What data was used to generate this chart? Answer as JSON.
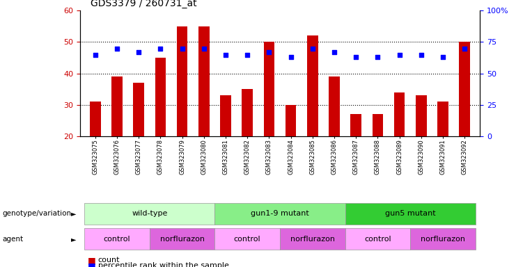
{
  "title": "GDS3379 / 260731_at",
  "samples": [
    "GSM323075",
    "GSM323076",
    "GSM323077",
    "GSM323078",
    "GSM323079",
    "GSM323080",
    "GSM323081",
    "GSM323082",
    "GSM323083",
    "GSM323084",
    "GSM323085",
    "GSM323086",
    "GSM323087",
    "GSM323088",
    "GSM323089",
    "GSM323090",
    "GSM323091",
    "GSM323092"
  ],
  "counts": [
    31,
    39,
    37,
    45,
    55,
    55,
    33,
    35,
    50,
    30,
    52,
    39,
    27,
    27,
    34,
    33,
    31,
    50
  ],
  "percentile_ranks": [
    65,
    70,
    67,
    70,
    70,
    70,
    65,
    65,
    67,
    63,
    70,
    67,
    63,
    63,
    65,
    65,
    63,
    70
  ],
  "ylim_left": [
    20,
    60
  ],
  "ylim_right": [
    0,
    100
  ],
  "yticks_left": [
    20,
    30,
    40,
    50,
    60
  ],
  "yticks_right": [
    0,
    25,
    50,
    75,
    100
  ],
  "bar_color": "#cc0000",
  "dot_color": "#0000ff",
  "bar_bottom": 20,
  "groups": [
    {
      "label": "wild-type",
      "start": 0,
      "end": 6,
      "color": "#ccffcc"
    },
    {
      "label": "gun1-9 mutant",
      "start": 6,
      "end": 12,
      "color": "#88ee88"
    },
    {
      "label": "gun5 mutant",
      "start": 12,
      "end": 18,
      "color": "#33cc33"
    }
  ],
  "agents": [
    {
      "label": "control",
      "start": 0,
      "end": 3,
      "color": "#ffaaff"
    },
    {
      "label": "norflurazon",
      "start": 3,
      "end": 6,
      "color": "#dd66dd"
    },
    {
      "label": "control",
      "start": 6,
      "end": 9,
      "color": "#ffaaff"
    },
    {
      "label": "norflurazon",
      "start": 9,
      "end": 12,
      "color": "#dd66dd"
    },
    {
      "label": "control",
      "start": 12,
      "end": 15,
      "color": "#ffaaff"
    },
    {
      "label": "norflurazon",
      "start": 15,
      "end": 18,
      "color": "#dd66dd"
    }
  ],
  "legend_count_color": "#cc0000",
  "legend_dot_color": "#0000ff",
  "bg_color": "#ffffff",
  "tick_label_color_left": "#cc0000",
  "tick_label_color_right": "#0000ff"
}
